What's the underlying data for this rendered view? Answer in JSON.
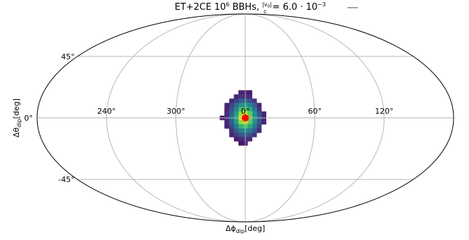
{
  "chart_data": {
    "type": "heatmap",
    "projection": "mollweide",
    "title": {
      "main": "ET+2CE 10",
      "main_sup": "6",
      "tail": " BBHs, ",
      "frac_num": "|v",
      "frac_num_sub": "0",
      "frac_num_end": "|",
      "frac_den": "c",
      "eq": " = 6.0 · 10",
      "eq_sup": "−3"
    },
    "xlabel": {
      "base": "Δϕ",
      "sub": "dip",
      "unit": "[deg]"
    },
    "ylabel": {
      "base": "Δθ",
      "sub": "dip",
      "unit": "[deg]"
    },
    "longitude_ticks": [
      {
        "label": "120°",
        "lon": -120
      },
      {
        "label": "60°",
        "lon": -60
      },
      {
        "label": "0°",
        "lon": 0
      },
      {
        "label": "300°",
        "lon": 60
      },
      {
        "label": "240°",
        "lon": 120
      }
    ],
    "latitude_ticks": [
      {
        "label": "45°",
        "lat": 45
      },
      {
        "label": "0°",
        "lat": 0
      },
      {
        "label": "-45°",
        "lat": -45
      }
    ],
    "grid": true,
    "marker": {
      "lon": 0,
      "lat": 0,
      "color": "#ff0000"
    },
    "cells": [
      {
        "lon": 0,
        "lat": 18,
        "v": 0.1
      },
      {
        "lon": 4,
        "lat": 18,
        "v": 0.1
      },
      {
        "lon": -4,
        "lat": 18,
        "v": 0.08
      },
      {
        "lon": 0,
        "lat": 15,
        "v": 0.15
      },
      {
        "lon": 4,
        "lat": 15,
        "v": 0.15
      },
      {
        "lon": -4,
        "lat": 15,
        "v": 0.12
      },
      {
        "lon": 8,
        "lat": 15,
        "v": 0.1
      },
      {
        "lon": 12,
        "lat": 12,
        "v": 0.1
      },
      {
        "lon": -8,
        "lat": 12,
        "v": 0.15
      },
      {
        "lon": -4,
        "lat": 12,
        "v": 0.25
      },
      {
        "lon": 0,
        "lat": 12,
        "v": 0.3
      },
      {
        "lon": 4,
        "lat": 12,
        "v": 0.3
      },
      {
        "lon": 8,
        "lat": 12,
        "v": 0.2
      },
      {
        "lon": -12,
        "lat": 9,
        "v": 0.1
      },
      {
        "lon": -8,
        "lat": 9,
        "v": 0.3
      },
      {
        "lon": -4,
        "lat": 9,
        "v": 0.45
      },
      {
        "lon": 0,
        "lat": 9,
        "v": 0.55
      },
      {
        "lon": 4,
        "lat": 9,
        "v": 0.5
      },
      {
        "lon": 8,
        "lat": 9,
        "v": 0.35
      },
      {
        "lon": 12,
        "lat": 9,
        "v": 0.2
      },
      {
        "lon": 16,
        "lat": 9,
        "v": 0.1
      },
      {
        "lon": -12,
        "lat": 6,
        "v": 0.15
      },
      {
        "lon": -8,
        "lat": 6,
        "v": 0.4
      },
      {
        "lon": -4,
        "lat": 6,
        "v": 0.6
      },
      {
        "lon": 0,
        "lat": 6,
        "v": 0.75
      },
      {
        "lon": 4,
        "lat": 6,
        "v": 0.7
      },
      {
        "lon": 8,
        "lat": 6,
        "v": 0.45
      },
      {
        "lon": 12,
        "lat": 6,
        "v": 0.25
      },
      {
        "lon": 16,
        "lat": 6,
        "v": 0.1
      },
      {
        "lon": -16,
        "lat": 3,
        "v": 0.1
      },
      {
        "lon": -12,
        "lat": 3,
        "v": 0.25
      },
      {
        "lon": -8,
        "lat": 3,
        "v": 0.5
      },
      {
        "lon": -4,
        "lat": 3,
        "v": 0.75
      },
      {
        "lon": 0,
        "lat": 3,
        "v": 0.9
      },
      {
        "lon": 4,
        "lat": 3,
        "v": 0.85
      },
      {
        "lon": 8,
        "lat": 3,
        "v": 0.55
      },
      {
        "lon": 12,
        "lat": 3,
        "v": 0.3
      },
      {
        "lon": 16,
        "lat": 3,
        "v": 0.12
      },
      {
        "lon": -16,
        "lat": 0,
        "v": 0.12
      },
      {
        "lon": -12,
        "lat": 0,
        "v": 0.28
      },
      {
        "lon": -8,
        "lat": 0,
        "v": 0.55
      },
      {
        "lon": -4,
        "lat": 0,
        "v": 0.8
      },
      {
        "lon": 0,
        "lat": 0,
        "v": 1.0
      },
      {
        "lon": 4,
        "lat": 0,
        "v": 0.95
      },
      {
        "lon": 8,
        "lat": 0,
        "v": 0.6
      },
      {
        "lon": 12,
        "lat": 0,
        "v": 0.35
      },
      {
        "lon": 16,
        "lat": 0,
        "v": 0.15
      },
      {
        "lon": 20,
        "lat": 0,
        "v": 0.08
      },
      {
        "lon": -16,
        "lat": -3,
        "v": 0.1
      },
      {
        "lon": -12,
        "lat": -3,
        "v": 0.25
      },
      {
        "lon": -8,
        "lat": -3,
        "v": 0.5
      },
      {
        "lon": -4,
        "lat": -3,
        "v": 0.75
      },
      {
        "lon": 0,
        "lat": -3,
        "v": 0.92
      },
      {
        "lon": 4,
        "lat": -3,
        "v": 0.85
      },
      {
        "lon": 8,
        "lat": -3,
        "v": 0.55
      },
      {
        "lon": 12,
        "lat": -3,
        "v": 0.3
      },
      {
        "lon": 16,
        "lat": -3,
        "v": 0.12
      },
      {
        "lon": -12,
        "lat": -6,
        "v": 0.2
      },
      {
        "lon": -8,
        "lat": -6,
        "v": 0.4
      },
      {
        "lon": -4,
        "lat": -6,
        "v": 0.6
      },
      {
        "lon": 0,
        "lat": -6,
        "v": 0.72
      },
      {
        "lon": 4,
        "lat": -6,
        "v": 0.65
      },
      {
        "lon": 8,
        "lat": -6,
        "v": 0.42
      },
      {
        "lon": 12,
        "lat": -6,
        "v": 0.22
      },
      {
        "lon": 16,
        "lat": -6,
        "v": 0.1
      },
      {
        "lon": -12,
        "lat": -9,
        "v": 0.12
      },
      {
        "lon": -8,
        "lat": -9,
        "v": 0.28
      },
      {
        "lon": -4,
        "lat": -9,
        "v": 0.42
      },
      {
        "lon": 0,
        "lat": -9,
        "v": 0.5
      },
      {
        "lon": 4,
        "lat": -9,
        "v": 0.45
      },
      {
        "lon": 8,
        "lat": -9,
        "v": 0.3
      },
      {
        "lon": 12,
        "lat": -9,
        "v": 0.15
      },
      {
        "lon": -8,
        "lat": -12,
        "v": 0.15
      },
      {
        "lon": -4,
        "lat": -12,
        "v": 0.25
      },
      {
        "lon": 0,
        "lat": -12,
        "v": 0.3
      },
      {
        "lon": 4,
        "lat": -12,
        "v": 0.28
      },
      {
        "lon": 8,
        "lat": -12,
        "v": 0.18
      },
      {
        "lon": 12,
        "lat": -12,
        "v": 0.1
      },
      {
        "lon": -4,
        "lat": -15,
        "v": 0.12
      },
      {
        "lon": 0,
        "lat": -15,
        "v": 0.15
      },
      {
        "lon": 4,
        "lat": -15,
        "v": 0.12
      },
      {
        "lon": 8,
        "lat": -15,
        "v": 0.08
      },
      {
        "lon": 0,
        "lat": -18,
        "v": 0.08
      },
      {
        "lon": 4,
        "lat": -18,
        "v": 0.06
      }
    ]
  }
}
